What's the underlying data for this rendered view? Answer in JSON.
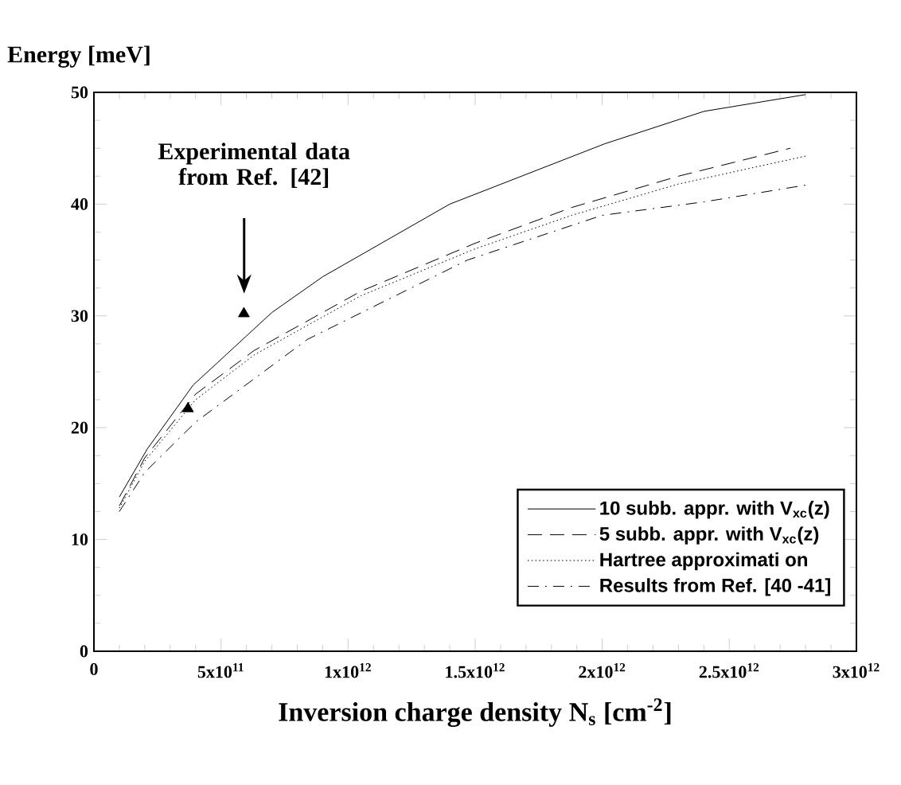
{
  "chart_data": {
    "type": "line",
    "ylabel": "Energy [meV]",
    "xlabel": "Inversion charge density N$_{s}$ [cm$^{-2}$]",
    "xlim": [
      0,
      3000000000000.0
    ],
    "ylim": [
      0,
      50
    ],
    "xticks": [
      0,
      {
        "value": 500000000000.0,
        "label": "5x10$^{11}$"
      },
      {
        "value": 1000000000000.0,
        "label": "1x10$^{12}$"
      },
      {
        "value": 1500000000000.0,
        "label": "1.5x10$^{12}$"
      },
      {
        "value": 2000000000000.0,
        "label": "2x10$^{12}$"
      },
      {
        "value": 2500000000000.0,
        "label": "2.5x10$^{12}$"
      },
      {
        "value": 3000000000000.0,
        "label": "3x10$^{12}$"
      }
    ],
    "yticks": [
      0,
      10,
      20,
      30,
      40,
      50
    ],
    "legend": "bottom right",
    "annotations": [
      "Experimental data from Ref. [42]"
    ],
    "series": [
      {
        "name": "10  subb. appr.  with  V$_{xc}$(z)",
        "color": "#000000",
        "line_style": "solid",
        "x": [
          100000000000.0,
          210000000000.0,
          390000000000.0,
          700000000000.0,
          900000000000.0,
          1400000000000.0,
          2010000000000.0,
          2400000000000.0,
          2800000000000.0
        ],
        "values": [
          13.8,
          18.1,
          23.8,
          30.3,
          33.5,
          40.0,
          45.4,
          48.3,
          49.8
        ]
      },
      {
        "name": "5  subb. appr.  with  V$_{xc}$(z)",
        "color": "#000000",
        "line_style": "dashed",
        "x": [
          100000000000.0,
          200000000000.0,
          400000000000.0,
          630000000000.0,
          1050000000000.0,
          1500000000000.0,
          1880000000000.0,
          2300000000000.0,
          2740000000000.0
        ],
        "values": [
          13.0,
          17.3,
          23.0,
          26.9,
          32.2,
          36.5,
          39.7,
          42.5,
          45.0
        ]
      },
      {
        "name": "Hartree approximati on",
        "color": "#000000",
        "line_style": "dotted",
        "x": [
          100000000000.0,
          200000000000.0,
          400000000000.0,
          630000000000.0,
          1050000000000.0,
          1500000000000.0,
          1880000000000.0,
          2300000000000.0,
          2800000000000.0
        ],
        "values": [
          12.8,
          17.0,
          22.5,
          26.5,
          31.8,
          36.0,
          39.0,
          41.8,
          44.3
        ]
      },
      {
        "name": "Results from Ref. [40 -41]",
        "color": "#000000",
        "line_style": "dashdot",
        "x": [
          100000000000.0,
          200000000000.0,
          400000000000.0,
          840000000000.0,
          1470000000000.0,
          2000000000000.0,
          2400000000000.0,
          2800000000000.0
        ],
        "values": [
          12.5,
          16.0,
          20.5,
          27.9,
          35.0,
          39.0,
          40.2,
          41.7
        ]
      },
      {
        "type": "scatter",
        "marker": "triangle",
        "color": "#000000",
        "x": [
          370000000000.0,
          590000000000.0
        ],
        "values": [
          21.7,
          30.2
        ]
      }
    ]
  }
}
